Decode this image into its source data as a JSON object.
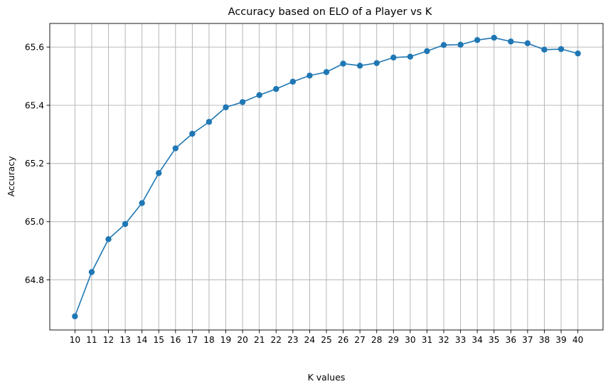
{
  "chart_data": {
    "type": "line",
    "title": "Accuracy based on ELO of a Player vs K",
    "xlabel": "K values",
    "ylabel": "Accuracy",
    "x": [
      10,
      11,
      12,
      13,
      14,
      15,
      16,
      17,
      18,
      19,
      20,
      21,
      22,
      23,
      24,
      25,
      26,
      27,
      28,
      29,
      30,
      31,
      32,
      33,
      34,
      35,
      36,
      37,
      38,
      39,
      40
    ],
    "series": [
      {
        "values": [
          64.675,
          64.827,
          64.94,
          64.992,
          65.064,
          65.167,
          65.252,
          65.302,
          65.343,
          65.393,
          65.411,
          65.435,
          65.456,
          65.481,
          65.502,
          65.514,
          65.543,
          65.536,
          65.545,
          65.564,
          65.567,
          65.586,
          65.607,
          65.608,
          65.624,
          65.632,
          65.619,
          65.613,
          65.591,
          65.593,
          65.578
        ],
        "color": "#1f77b4",
        "marker": "circle"
      }
    ],
    "xlim": [
      8.5,
      41.5
    ],
    "ylim": [
      64.628,
      65.681
    ],
    "xticks": [
      "10",
      "11",
      "12",
      "13",
      "14",
      "15",
      "16",
      "17",
      "18",
      "19",
      "20",
      "21",
      "22",
      "23",
      "24",
      "25",
      "26",
      "27",
      "28",
      "29",
      "30",
      "31",
      "32",
      "33",
      "34",
      "35",
      "36",
      "37",
      "38",
      "39",
      "40"
    ],
    "yticks": [
      "64.8",
      "65.0",
      "65.2",
      "65.4",
      "65.6"
    ],
    "grid": true
  }
}
